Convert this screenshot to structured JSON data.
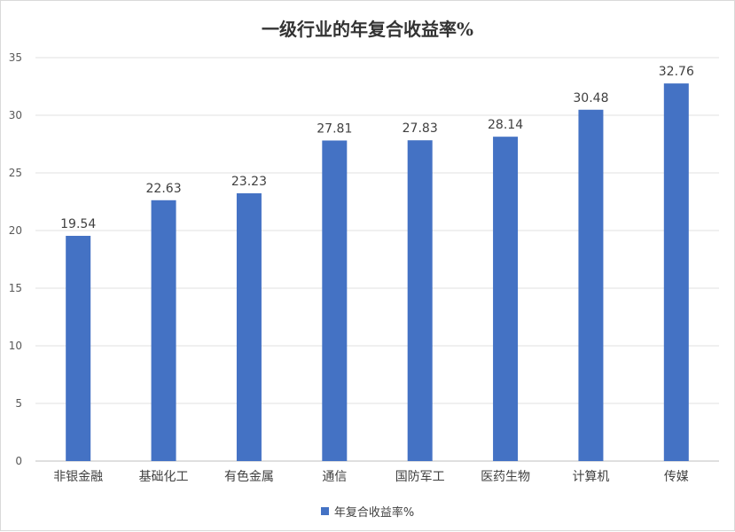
{
  "chart_data": {
    "type": "bar",
    "title": "一级行业的年复合收益率%",
    "xlabel": "",
    "ylabel": "",
    "ylim": [
      0,
      35
    ],
    "yticks": [
      "0",
      "5",
      "10",
      "15",
      "20",
      "25",
      "30",
      "35"
    ],
    "categories": [
      "非银金融",
      "基础化工",
      "有色金属",
      "通信",
      "国防军工",
      "医药生物",
      "计算机",
      "传媒"
    ],
    "series": [
      {
        "name": "年复合收益率%",
        "values": [
          19.54,
          22.63,
          23.23,
          27.81,
          27.83,
          28.14,
          30.48,
          32.76
        ],
        "labels": [
          "19.54",
          "22.63",
          "23.23",
          "27.81",
          "27.83",
          "28.14",
          "30.48",
          "32.76"
        ],
        "color": "#4472c4"
      }
    ],
    "grid": true,
    "legend_position": "bottom"
  }
}
